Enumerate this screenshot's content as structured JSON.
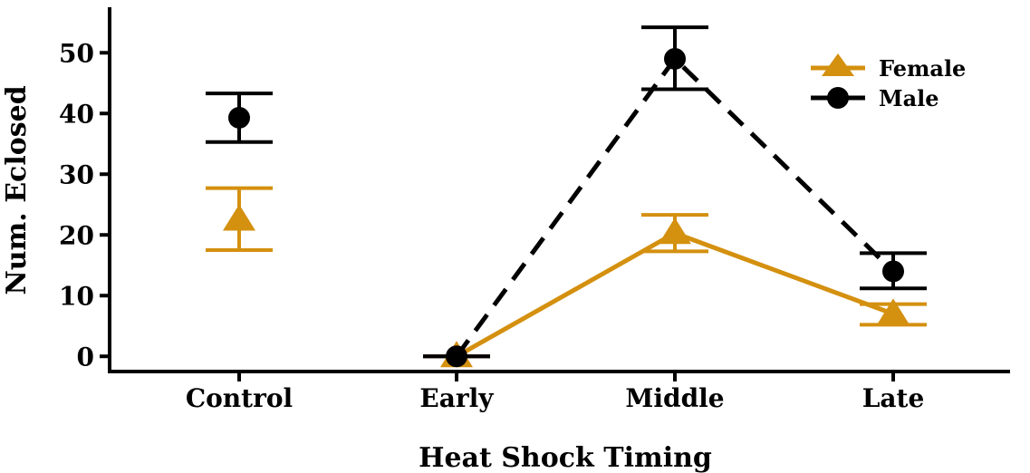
{
  "chart_data": {
    "type": "line",
    "title": "",
    "xlabel": "Heat Shock Timing",
    "ylabel": "Num. Eclosed",
    "categories": [
      "Control",
      "Early",
      "Middle",
      "Late"
    ],
    "yticks": [
      0,
      10,
      20,
      30,
      40,
      50
    ],
    "ylim": [
      -2.5,
      57.5
    ],
    "grid": false,
    "legend_position": "top-right",
    "series": [
      {
        "name": "Female",
        "color": "#D4900F",
        "marker": "triangle",
        "line_style": "solid",
        "values": [
          22.5,
          0,
          20.3,
          7
        ],
        "err_low": [
          17.5,
          0,
          17.3,
          5.2
        ],
        "err_high": [
          27.7,
          0,
          23.3,
          8.6
        ],
        "connected_from_index": 1
      },
      {
        "name": "Male",
        "color": "#000000",
        "marker": "circle",
        "line_style": "dashed",
        "values": [
          39.3,
          0,
          49,
          14
        ],
        "err_low": [
          35.3,
          0,
          44,
          11.2
        ],
        "err_high": [
          43.3,
          0,
          54.2,
          17
        ],
        "connected_from_index": 1
      }
    ]
  }
}
